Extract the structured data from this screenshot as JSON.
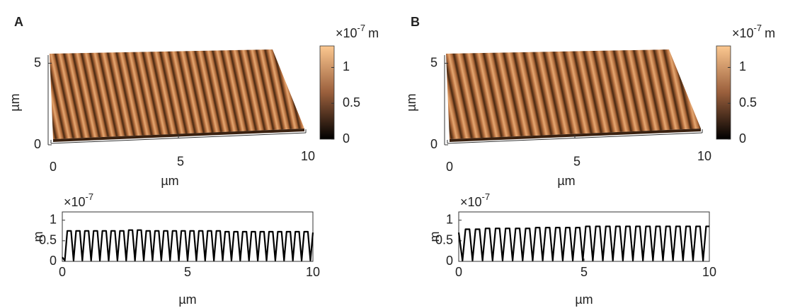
{
  "chart_data": [
    {
      "type": "surface3d",
      "label": "A",
      "xlabel": "µm",
      "ylabel": "µm",
      "xlim": [
        0,
        10
      ],
      "xticks": [
        0,
        5,
        10
      ],
      "ylim": [
        0,
        5.5
      ],
      "yticks": [
        0,
        5
      ],
      "colorbar": {
        "base": "×10",
        "exponent": "-7",
        "unit": "m",
        "clim": [
          0,
          1.3
        ],
        "ticks": [
          0,
          0.5,
          1
        ]
      }
    },
    {
      "type": "line",
      "xlabel": "µm",
      "ylabel": "m",
      "scale": {
        "base": "×10",
        "exponent": "-7"
      },
      "color": "#000000",
      "xlim": [
        0,
        10
      ],
      "ylim": [
        0,
        1.2
      ],
      "xticks": [
        0,
        5,
        10
      ],
      "yticks": [
        0,
        0.5,
        1
      ],
      "x": [
        0,
        0.1,
        0.2,
        0.35,
        0.45,
        0.55,
        0.7,
        0.8,
        0.9,
        1.05,
        1.15,
        1.25,
        1.4,
        1.5,
        1.6,
        1.75,
        1.85,
        1.95,
        2.1,
        2.2,
        2.3,
        2.45,
        2.55,
        2.65,
        2.8,
        2.9,
        3.0,
        3.15,
        3.25,
        3.35,
        3.5,
        3.6,
        3.7,
        3.85,
        3.95,
        4.05,
        4.2,
        4.3,
        4.4,
        4.55,
        4.65,
        4.75,
        4.9,
        5.0,
        5.1,
        5.25,
        5.35,
        5.45,
        5.6,
        5.7,
        5.8,
        5.95,
        6.05,
        6.15,
        6.3,
        6.4,
        6.5,
        6.65,
        6.75,
        6.85,
        7.0,
        7.1,
        7.2,
        7.35,
        7.45,
        7.55,
        7.7,
        7.8,
        7.9,
        8.05,
        8.15,
        8.25,
        8.4,
        8.5,
        8.6,
        8.75,
        8.85,
        8.95,
        9.1,
        9.2,
        9.3,
        9.45,
        9.55,
        9.65,
        9.8,
        9.9,
        10.0
      ],
      "values": [
        0.1,
        0.02,
        0.74,
        0.74,
        0.02,
        0.74,
        0.74,
        0.02,
        0.74,
        0.74,
        0.02,
        0.74,
        0.74,
        0.02,
        0.74,
        0.74,
        0.02,
        0.74,
        0.74,
        0.02,
        0.74,
        0.74,
        0.02,
        0.76,
        0.76,
        0.02,
        0.76,
        0.76,
        0.02,
        0.74,
        0.74,
        0.02,
        0.74,
        0.74,
        0.02,
        0.74,
        0.74,
        0.02,
        0.74,
        0.74,
        0.02,
        0.74,
        0.74,
        0.02,
        0.74,
        0.74,
        0.02,
        0.74,
        0.74,
        0.02,
        0.74,
        0.74,
        0.02,
        0.74,
        0.74,
        0.02,
        0.72,
        0.72,
        0.02,
        0.72,
        0.72,
        0.02,
        0.72,
        0.72,
        0.02,
        0.72,
        0.72,
        0.02,
        0.72,
        0.72,
        0.02,
        0.72,
        0.72,
        0.02,
        0.72,
        0.72,
        0.02,
        0.72,
        0.72,
        0.02,
        0.72,
        0.72,
        0.02,
        0.72,
        0.72,
        0.02,
        0.7
      ]
    },
    {
      "type": "surface3d",
      "label": "B",
      "xlabel": "µm",
      "ylabel": "µm",
      "xlim": [
        0,
        10
      ],
      "xticks": [
        0,
        5,
        10
      ],
      "ylim": [
        0,
        5.5
      ],
      "yticks": [
        0,
        5
      ],
      "colorbar": {
        "base": "×10",
        "exponent": "-7",
        "unit": "m",
        "clim": [
          0,
          1.3
        ],
        "ticks": [
          0,
          0.5,
          1
        ]
      }
    },
    {
      "type": "line",
      "xlabel": "µm",
      "ylabel": "m",
      "scale": {
        "base": "×10",
        "exponent": "-7"
      },
      "color": "#000000",
      "xlim": [
        0,
        10
      ],
      "ylim": [
        0,
        1.2
      ],
      "xticks": [
        0,
        5,
        10
      ],
      "yticks": [
        0,
        0.5,
        1
      ],
      "x": [
        0,
        0.15,
        0.27,
        0.43,
        0.55,
        0.67,
        0.83,
        0.95,
        1.07,
        1.23,
        1.35,
        1.47,
        1.63,
        1.75,
        1.87,
        2.03,
        2.15,
        2.27,
        2.43,
        2.55,
        2.67,
        2.83,
        2.95,
        3.07,
        3.23,
        3.35,
        3.47,
        3.63,
        3.75,
        3.87,
        4.03,
        4.15,
        4.27,
        4.43,
        4.55,
        4.67,
        4.83,
        4.95,
        5.07,
        5.23,
        5.35,
        5.47,
        5.63,
        5.75,
        5.87,
        6.03,
        6.15,
        6.27,
        6.43,
        6.55,
        6.67,
        6.83,
        6.95,
        7.07,
        7.23,
        7.35,
        7.47,
        7.63,
        7.75,
        7.87,
        8.03,
        8.15,
        8.27,
        8.43,
        8.55,
        8.67,
        8.83,
        8.95,
        9.07,
        9.23,
        9.35,
        9.47,
        9.63,
        9.75,
        9.87,
        10.0
      ],
      "values": [
        0.7,
        0.02,
        0.78,
        0.78,
        0.02,
        0.78,
        0.78,
        0.02,
        0.8,
        0.8,
        0.02,
        0.8,
        0.8,
        0.02,
        0.8,
        0.8,
        0.02,
        0.8,
        0.8,
        0.02,
        0.8,
        0.8,
        0.02,
        0.82,
        0.82,
        0.02,
        0.82,
        0.82,
        0.02,
        0.82,
        0.82,
        0.02,
        0.82,
        0.82,
        0.02,
        0.82,
        0.82,
        0.02,
        0.85,
        0.85,
        0.02,
        0.85,
        0.85,
        0.02,
        0.85,
        0.85,
        0.02,
        0.85,
        0.85,
        0.02,
        0.85,
        0.85,
        0.02,
        0.85,
        0.85,
        0.02,
        0.85,
        0.85,
        0.02,
        0.85,
        0.85,
        0.02,
        0.85,
        0.85,
        0.02,
        0.85,
        0.85,
        0.02,
        0.85,
        0.85,
        0.02,
        0.85,
        0.85,
        0.02,
        0.85,
        0.85
      ]
    }
  ]
}
